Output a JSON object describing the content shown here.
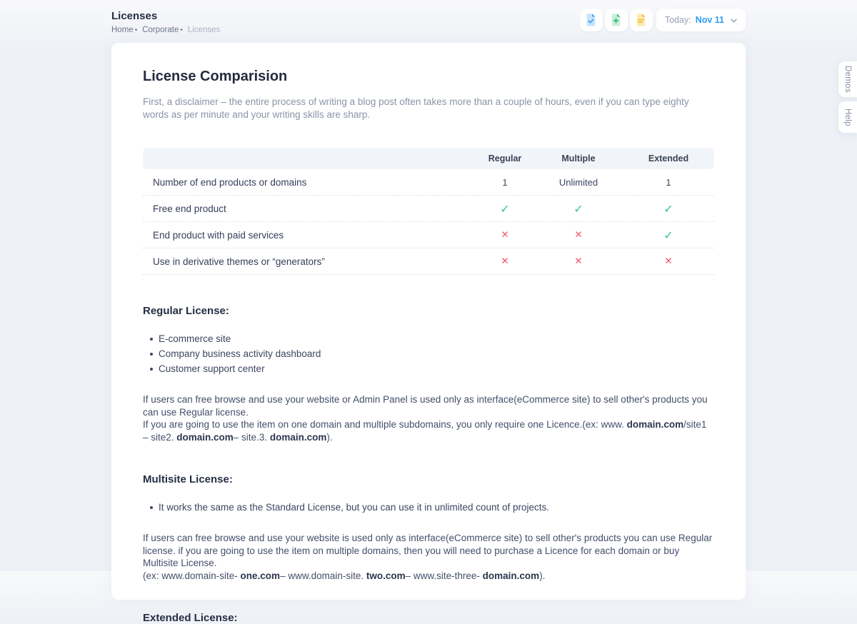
{
  "header": {
    "title": "Licenses",
    "breadcrumbs": [
      {
        "label": "Home",
        "current": false
      },
      {
        "label": "Corporate",
        "current": false
      },
      {
        "label": "Licenses",
        "current": true
      }
    ],
    "separator": "•",
    "action_icons": [
      {
        "name": "file-check-icon",
        "kind": "check",
        "color": "#3da2f5",
        "tint": "#c7e3fb"
      },
      {
        "name": "file-plus-icon",
        "kind": "plus",
        "color": "#2fbf77",
        "tint": "#cceedb"
      },
      {
        "name": "file-lines-icon",
        "kind": "lines",
        "color": "#f4b71f",
        "tint": "#fbeab5"
      }
    ],
    "date_filter": {
      "prefix": "Today:",
      "value": "Nov 11"
    }
  },
  "side_tabs": [
    {
      "label": "Demos"
    },
    {
      "label": "Help"
    }
  ],
  "content": {
    "title": "License Comparision",
    "intro": "First, a disclaimer – the entire process of writing a blog post often takes more than a couple of hours, even if you can type eighty words as per minute and your writing skills are sharp.",
    "table": {
      "header_bg": "#f1f5f9",
      "columns": [
        "Regular",
        "Multiple",
        "Extended"
      ],
      "glyphs": {
        "check": "✓",
        "cross": "✕"
      },
      "glyph_colors": {
        "check": "#30ca82",
        "cross": "#f1566f"
      },
      "rows": [
        {
          "feature": "Number of end products or domains",
          "values": [
            {
              "text": "1"
            },
            {
              "text": "Unlimited"
            },
            {
              "text": "1"
            }
          ]
        },
        {
          "feature": "Free end product",
          "values": [
            {
              "icon": "check"
            },
            {
              "icon": "check"
            },
            {
              "icon": "check"
            }
          ]
        },
        {
          "feature": "End product with paid services",
          "values": [
            {
              "icon": "cross"
            },
            {
              "icon": "cross"
            },
            {
              "icon": "check"
            }
          ]
        },
        {
          "feature": "Use in derivative themes or “generators”",
          "values": [
            {
              "icon": "cross"
            },
            {
              "icon": "cross"
            },
            {
              "icon": "cross"
            }
          ]
        }
      ]
    },
    "sections": [
      {
        "heading": "Regular License:",
        "bullets": [
          "E-commerce site",
          "Company business activity dashboard",
          "Customer support center"
        ],
        "paragraph_lines": [
          [
            {
              "text": "If users can free browse and use your website or Admin Panel is used only as interface(eCommerce site) to sell other's products you can use Regular license."
            }
          ],
          [
            {
              "text": "If you are going to use the item on one domain and multiple subdomains, you only require one Licence.(ex: www. "
            },
            {
              "text": "domain.com",
              "bold": true
            },
            {
              "text": "/site1 – site2. "
            },
            {
              "text": "domain.com",
              "bold": true
            },
            {
              "text": "– site.3. "
            },
            {
              "text": "domain.com",
              "bold": true
            },
            {
              "text": ")."
            }
          ]
        ]
      },
      {
        "heading": "Multisite License:",
        "bullets": [
          "It works the same as the Standard License, but you can use it in unlimited count of projects."
        ],
        "paragraph_lines": [
          [
            {
              "text": "If users can free browse and use your website is used only as interface(eCommerce site) to sell other's products you can use Regular license. if you are going to use the item on multiple domains, then you will need to purchase a Licence for each domain or buy Multisite License."
            }
          ],
          [
            {
              "text": "(ex: www.domain-site- "
            },
            {
              "text": "one.com",
              "bold": true
            },
            {
              "text": "– www.domain-site. "
            },
            {
              "text": "two.com",
              "bold": true
            },
            {
              "text": "– www.site-three- "
            },
            {
              "text": "domain.com",
              "bold": true
            },
            {
              "text": ")."
            }
          ]
        ]
      },
      {
        "heading": "Extended License:",
        "bullets": [],
        "paragraph_lines": []
      }
    ]
  }
}
